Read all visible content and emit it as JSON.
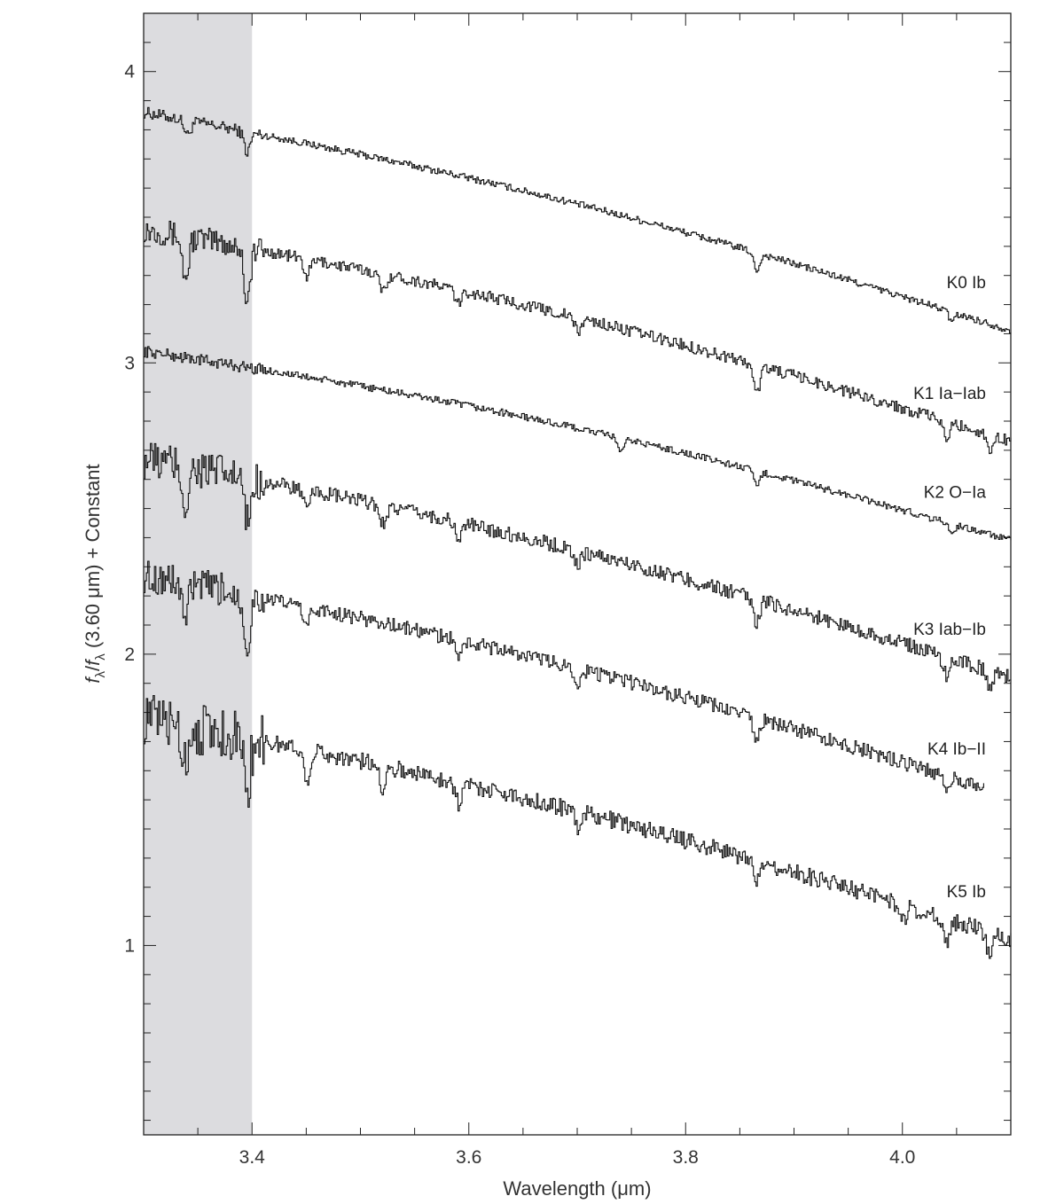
{
  "chart_data": {
    "type": "line",
    "xlabel": "Wavelength (μm)",
    "ylabel": {
      "main": "f",
      "sub": "λ",
      "sep": "/",
      "main2": "f",
      "sub2": "λ",
      "rest": " (3.60 μm) + Constant"
    },
    "xlim": [
      3.3,
      4.1
    ],
    "ylim": [
      0.35,
      4.2
    ],
    "x_ticks": [
      3.4,
      3.6,
      3.8,
      4.0
    ],
    "x_tick_labels": [
      "3.4",
      "3.6",
      "3.8",
      "4.0"
    ],
    "y_ticks": [
      1,
      2,
      3,
      4
    ],
    "y_tick_labels": [
      "1",
      "2",
      "3",
      "4"
    ],
    "grid": false,
    "shaded_region": {
      "x": [
        3.3,
        3.4
      ],
      "color": "#dcdcdf"
    },
    "line_color": "#111111",
    "series": [
      {
        "name": "K0 Ib",
        "x_range": [
          3.3,
          4.1
        ],
        "start": 3.86,
        "end": 3.11,
        "curve": 0.06,
        "noise": 0.012,
        "early_noise": 0.02,
        "absorption": [
          {
            "x": 3.34,
            "d": 0.05
          },
          {
            "x": 3.395,
            "d": 0.07
          },
          {
            "x": 3.865,
            "d": 0.06
          },
          {
            "x": 4.045,
            "d": 0.03
          }
        ]
      },
      {
        "name": "K1 Ia−Iab",
        "x_range": [
          3.3,
          4.1
        ],
        "start": 3.46,
        "end": 2.73,
        "curve": 0.06,
        "noise": 0.02,
        "early_noise": 0.045,
        "absorption": [
          {
            "x": 3.338,
            "d": 0.15
          },
          {
            "x": 3.395,
            "d": 0.18
          },
          {
            "x": 3.45,
            "d": 0.06
          },
          {
            "x": 3.52,
            "d": 0.06
          },
          {
            "x": 3.59,
            "d": 0.05
          },
          {
            "x": 3.7,
            "d": 0.05
          },
          {
            "x": 3.865,
            "d": 0.1
          },
          {
            "x": 4.04,
            "d": 0.06
          },
          {
            "x": 4.08,
            "d": 0.05
          }
        ]
      },
      {
        "name": "K2 O−Ia",
        "x_range": [
          3.3,
          4.1
        ],
        "start": 3.04,
        "end": 2.39,
        "curve": 0.06,
        "noise": 0.012,
        "early_noise": 0.02,
        "absorption": [
          {
            "x": 3.74,
            "d": 0.05
          },
          {
            "x": 3.865,
            "d": 0.05
          },
          {
            "x": 4.045,
            "d": 0.03
          }
        ]
      },
      {
        "name": "K3 Iab−Ib",
        "x_range": [
          3.3,
          4.1
        ],
        "start": 2.67,
        "end": 1.92,
        "curve": 0.06,
        "noise": 0.025,
        "early_noise": 0.07,
        "absorption": [
          {
            "x": 3.338,
            "d": 0.14
          },
          {
            "x": 3.395,
            "d": 0.16
          },
          {
            "x": 3.45,
            "d": 0.07
          },
          {
            "x": 3.52,
            "d": 0.06
          },
          {
            "x": 3.59,
            "d": 0.06
          },
          {
            "x": 3.7,
            "d": 0.05
          },
          {
            "x": 3.865,
            "d": 0.08
          },
          {
            "x": 4.04,
            "d": 0.06
          },
          {
            "x": 4.08,
            "d": 0.06
          }
        ]
      },
      {
        "name": "K4 Ib−II",
        "x_range": [
          3.3,
          4.075
        ],
        "start": 2.27,
        "end": 1.51,
        "curve": 0.06,
        "noise": 0.025,
        "early_noise": 0.06,
        "absorption": [
          {
            "x": 3.338,
            "d": 0.12
          },
          {
            "x": 3.395,
            "d": 0.18
          },
          {
            "x": 3.45,
            "d": 0.06
          },
          {
            "x": 3.59,
            "d": 0.06
          },
          {
            "x": 3.7,
            "d": 0.05
          },
          {
            "x": 3.865,
            "d": 0.08
          },
          {
            "x": 4.04,
            "d": 0.05
          }
        ]
      },
      {
        "name": "K5 Ib",
        "x_range": [
          3.3,
          4.1
        ],
        "start": 1.78,
        "end": 1.02,
        "curve": 0.06,
        "noise": 0.03,
        "early_noise": 0.09,
        "absorption": [
          {
            "x": 3.338,
            "d": 0.12
          },
          {
            "x": 3.395,
            "d": 0.18
          },
          {
            "x": 3.45,
            "d": 0.1
          },
          {
            "x": 3.52,
            "d": 0.07
          },
          {
            "x": 3.59,
            "d": 0.07
          },
          {
            "x": 3.7,
            "d": 0.05
          },
          {
            "x": 3.865,
            "d": 0.08
          },
          {
            "x": 4.0,
            "d": 0.05
          },
          {
            "x": 4.04,
            "d": 0.08
          },
          {
            "x": 4.08,
            "d": 0.08
          }
        ]
      }
    ]
  }
}
